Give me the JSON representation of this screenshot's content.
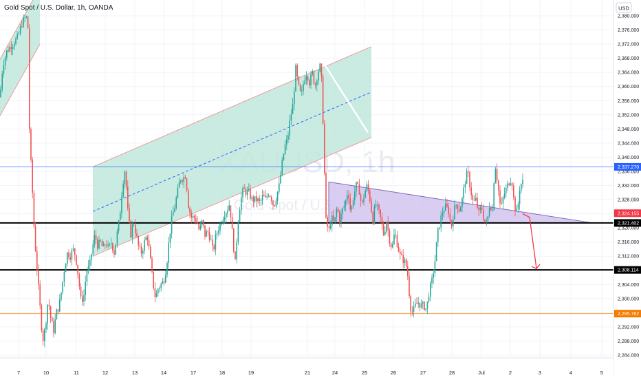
{
  "header": {
    "title": "Gold Spot / U.S. Dollar, 1h, OANDA",
    "currency": "USD"
  },
  "watermark": {
    "symbol": "XAUUSD, 1h",
    "description": "Gold Spot / U.S. Dollar"
  },
  "chart_data": {
    "type": "candlestick",
    "title": "Gold Spot / U.S. Dollar, 1h, OANDA",
    "ylabel": "USD",
    "ylim": [
      2282,
      2381
    ],
    "x_ticks": [
      "7",
      "10",
      "11",
      "12",
      "13",
      "14",
      "17",
      "18",
      "19",
      "21",
      "24",
      "25",
      "26",
      "27",
      "28",
      "Jul",
      "2",
      "3",
      "4",
      "5"
    ],
    "y_ticks": [
      "2,380.000",
      "2,376.000",
      "2,372.000",
      "2,368.000",
      "2,364.000",
      "2,360.000",
      "2,356.000",
      "2,352.000",
      "2,348.000",
      "2,344.000",
      "2,340.000",
      "2,336.000",
      "2,332.000",
      "2,328.000",
      "2,324.000",
      "2,320.000",
      "2,316.000",
      "2,312.000",
      "2,308.000",
      "2,304.000",
      "2,300.000",
      "2,296.000",
      "2,292.000",
      "2,288.000",
      "2,284.000"
    ],
    "price_levels": [
      {
        "value": 2337.27,
        "label": "2,337.270",
        "color": "#2962ff",
        "style": "thin"
      },
      {
        "value": 2324.155,
        "label": "2,324.155",
        "color": "#f23645",
        "style": "none"
      },
      {
        "value": 2321.402,
        "label": "2,321.402",
        "color": "#000000",
        "style": "thick"
      },
      {
        "value": 2308.114,
        "label": "2,308.114",
        "color": "#000000",
        "style": "thick"
      },
      {
        "value": 2295.762,
        "label": "2,295.762",
        "color": "#f57c00",
        "style": "thin"
      }
    ],
    "path": [
      [
        0,
        2357
      ],
      [
        4,
        2366
      ],
      [
        10,
        2370
      ],
      [
        18,
        2372
      ],
      [
        26,
        2374
      ],
      [
        32,
        2378
      ],
      [
        38,
        2380
      ],
      [
        41,
        2376
      ],
      [
        43,
        2345
      ],
      [
        46,
        2335
      ],
      [
        50,
        2318
      ],
      [
        54,
        2308
      ],
      [
        58,
        2298
      ],
      [
        62,
        2288
      ],
      [
        66,
        2292
      ],
      [
        70,
        2300
      ],
      [
        74,
        2294
      ],
      [
        78,
        2291
      ],
      [
        82,
        2296
      ],
      [
        86,
        2298
      ],
      [
        90,
        2303
      ],
      [
        94,
        2309
      ],
      [
        98,
        2313
      ],
      [
        102,
        2312
      ],
      [
        106,
        2314
      ],
      [
        110,
        2312
      ],
      [
        114,
        2306
      ],
      [
        118,
        2299
      ],
      [
        122,
        2301
      ],
      [
        126,
        2308
      ],
      [
        130,
        2309
      ],
      [
        134,
        2314
      ],
      [
        138,
        2318
      ],
      [
        142,
        2315
      ],
      [
        146,
        2316
      ],
      [
        150,
        2314
      ],
      [
        154,
        2316
      ],
      [
        158,
        2314
      ],
      [
        162,
        2316
      ],
      [
        166,
        2313
      ],
      [
        170,
        2318
      ],
      [
        174,
        2323
      ],
      [
        178,
        2332
      ],
      [
        182,
        2337
      ],
      [
        186,
        2324
      ],
      [
        190,
        2318
      ],
      [
        194,
        2322
      ],
      [
        198,
        2318
      ],
      [
        202,
        2314
      ],
      [
        206,
        2313
      ],
      [
        210,
        2316
      ],
      [
        214,
        2318
      ],
      [
        218,
        2312
      ],
      [
        222,
        2305
      ],
      [
        226,
        2300
      ],
      [
        230,
        2303
      ],
      [
        234,
        2304
      ],
      [
        238,
        2305
      ],
      [
        242,
        2309
      ],
      [
        246,
        2317
      ],
      [
        250,
        2323
      ],
      [
        254,
        2326
      ],
      [
        258,
        2330
      ],
      [
        262,
        2334
      ],
      [
        266,
        2334
      ],
      [
        270,
        2335
      ],
      [
        274,
        2326
      ],
      [
        278,
        2323
      ],
      [
        282,
        2323
      ],
      [
        286,
        2322
      ],
      [
        290,
        2319
      ],
      [
        294,
        2322
      ],
      [
        298,
        2318
      ],
      [
        302,
        2319
      ],
      [
        306,
        2317
      ],
      [
        310,
        2313
      ],
      [
        314,
        2318
      ],
      [
        318,
        2320
      ],
      [
        322,
        2322
      ],
      [
        326,
        2324
      ],
      [
        330,
        2325
      ],
      [
        334,
        2327
      ],
      [
        338,
        2318
      ],
      [
        342,
        2310
      ],
      [
        346,
        2322
      ],
      [
        350,
        2328
      ],
      [
        354,
        2331
      ],
      [
        358,
        2330
      ],
      [
        362,
        2330
      ],
      [
        366,
        2328
      ],
      [
        370,
        2328
      ],
      [
        374,
        2328
      ],
      [
        378,
        2327
      ],
      [
        382,
        2329
      ],
      [
        386,
        2328
      ],
      [
        390,
        2330
      ],
      [
        394,
        2329
      ],
      [
        398,
        2326
      ],
      [
        402,
        2329
      ],
      [
        406,
        2332
      ],
      [
        410,
        2338
      ],
      [
        414,
        2343
      ],
      [
        418,
        2345
      ],
      [
        422,
        2351
      ],
      [
        426,
        2355
      ],
      [
        430,
        2365
      ],
      [
        434,
        2360
      ],
      [
        438,
        2357
      ],
      [
        442,
        2362
      ],
      [
        446,
        2364
      ],
      [
        450,
        2361
      ],
      [
        454,
        2364
      ],
      [
        458,
        2360
      ],
      [
        462,
        2364
      ],
      [
        466,
        2366
      ],
      [
        468,
        2360
      ],
      [
        470,
        2348
      ],
      [
        472,
        2334
      ],
      [
        474,
        2322
      ],
      [
        478,
        2319
      ],
      [
        482,
        2323
      ],
      [
        486,
        2321
      ],
      [
        490,
        2326
      ],
      [
        494,
        2322
      ],
      [
        498,
        2325
      ],
      [
        502,
        2327
      ],
      [
        506,
        2331
      ],
      [
        510,
        2324
      ],
      [
        514,
        2329
      ],
      [
        518,
        2332
      ],
      [
        522,
        2331
      ],
      [
        526,
        2326
      ],
      [
        530,
        2330
      ],
      [
        534,
        2332
      ],
      [
        538,
        2328
      ],
      [
        542,
        2322
      ],
      [
        546,
        2327
      ],
      [
        550,
        2325
      ],
      [
        554,
        2322
      ],
      [
        558,
        2318
      ],
      [
        562,
        2322
      ],
      [
        566,
        2317
      ],
      [
        570,
        2314
      ],
      [
        574,
        2319
      ],
      [
        578,
        2315
      ],
      [
        582,
        2312
      ],
      [
        586,
        2311
      ],
      [
        590,
        2310
      ],
      [
        594,
        2305
      ],
      [
        596,
        2298
      ],
      [
        600,
        2296
      ],
      [
        604,
        2298
      ],
      [
        608,
        2299
      ],
      [
        612,
        2298
      ],
      [
        616,
        2298
      ],
      [
        620,
        2297
      ],
      [
        624,
        2302
      ],
      [
        628,
        2305
      ],
      [
        632,
        2310
      ],
      [
        636,
        2318
      ],
      [
        640,
        2322
      ],
      [
        644,
        2325
      ],
      [
        648,
        2326
      ],
      [
        652,
        2325
      ],
      [
        656,
        2320
      ],
      [
        660,
        2325
      ],
      [
        664,
        2327
      ],
      [
        668,
        2325
      ],
      [
        672,
        2328
      ],
      [
        676,
        2333
      ],
      [
        680,
        2336
      ],
      [
        684,
        2331
      ],
      [
        688,
        2327
      ],
      [
        692,
        2328
      ],
      [
        696,
        2324
      ],
      [
        700,
        2326
      ],
      [
        704,
        2322
      ],
      [
        708,
        2321
      ],
      [
        712,
        2327
      ],
      [
        716,
        2325
      ],
      [
        718,
        2333
      ],
      [
        720,
        2338
      ],
      [
        724,
        2332
      ],
      [
        728,
        2325
      ],
      [
        732,
        2329
      ],
      [
        736,
        2331
      ],
      [
        740,
        2333
      ],
      [
        744,
        2334
      ],
      [
        748,
        2326
      ],
      [
        752,
        2324
      ],
      [
        756,
        2332
      ],
      [
        760,
        2333
      ],
      [
        762,
        2324
      ]
    ],
    "drawings": {
      "channel_left": {
        "upper": [
          [
            -5,
            2366
          ],
          [
            58,
            2388
          ]
        ],
        "lower": [
          [
            -5,
            2350
          ],
          [
            58,
            2372
          ]
        ]
      },
      "channel_main": {
        "x": [
          135,
          540
        ],
        "upper": [
          2337.3,
          2371.3
        ],
        "lower": [
          2312,
          2345.6
        ]
      },
      "triangle": {
        "apex": [
          862,
          2321.4
        ],
        "top": [
          478,
          2333
        ],
        "bottom_x": 478
      },
      "swing_lines": [
        [
          [
            466,
            2368
          ],
          [
            535,
            2347
          ]
        ],
        [
          [
            537,
            2341
          ],
          [
            548,
            2337
          ]
        ]
      ],
      "projection_arrow": [
        [
          760,
          2324
        ],
        [
          770,
          2323
        ],
        [
          780,
          2308.5
        ]
      ]
    }
  }
}
